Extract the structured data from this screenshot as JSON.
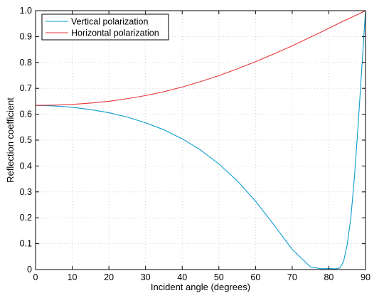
{
  "chart_data": {
    "type": "line",
    "xlabel": "Incident angle (degrees)",
    "ylabel": "Reflection coefficient",
    "xlim": [
      0,
      90
    ],
    "ylim": [
      0,
      1
    ],
    "xticks": [
      "0",
      "10",
      "20",
      "30",
      "40",
      "50",
      "60",
      "70",
      "80",
      "90"
    ],
    "yticks": [
      "0",
      "0.1",
      "0.2",
      "0.3",
      "0.4",
      "0.5",
      "0.6",
      "0.7",
      "0.8",
      "0.9",
      "1.0"
    ],
    "grid": true,
    "legend_position": "top-left",
    "x": [
      0,
      5,
      10,
      15,
      20,
      25,
      30,
      35,
      40,
      45,
      50,
      55,
      60,
      65,
      70,
      75,
      78,
      80,
      82,
      83,
      84,
      85,
      86,
      87,
      88,
      89,
      90
    ],
    "series": [
      {
        "name": "Vertical polarization",
        "color": "#0b9bcf",
        "values": [
          0.634,
          0.632,
          0.627,
          0.618,
          0.606,
          0.589,
          0.567,
          0.54,
          0.505,
          0.462,
          0.408,
          0.343,
          0.264,
          0.173,
          0.078,
          0.01,
          0.003,
          0.004,
          0.003,
          0.006,
          0.03,
          0.095,
          0.2,
          0.36,
          0.56,
          0.78,
          1.0
        ]
      },
      {
        "name": "Horizontal polarization",
        "color": "#e8363a",
        "values": [
          0.634,
          0.635,
          0.638,
          0.643,
          0.65,
          0.66,
          0.672,
          0.687,
          0.705,
          0.726,
          0.749,
          0.775,
          0.803,
          0.833,
          0.864,
          0.898,
          0.918,
          0.932,
          0.946,
          0.953,
          0.96,
          0.966,
          0.973,
          0.98,
          0.986,
          0.993,
          1.0
        ]
      }
    ]
  }
}
